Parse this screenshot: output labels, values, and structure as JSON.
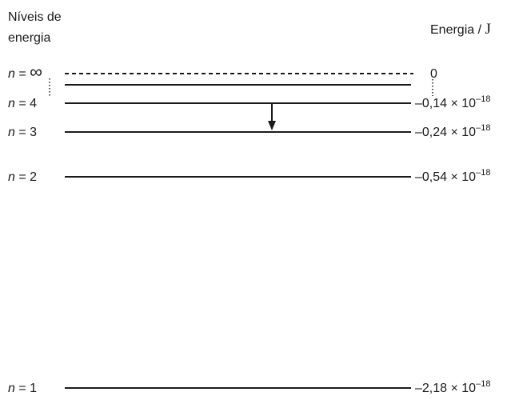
{
  "headers": {
    "levels_line1": "Níveis de",
    "levels_line2": "energia",
    "energy_label": "Energia / ",
    "energy_unit": "J"
  },
  "levels": [
    {
      "n_symbol": "n",
      "eq": " = ",
      "n_value": "∞",
      "energy": "0",
      "energy_coef": "",
      "energy_times": "",
      "energy_exp": ""
    },
    {
      "n_symbol": "n",
      "eq": " = ",
      "n_value": "4",
      "energy": "",
      "energy_coef": "–0,14",
      "energy_times": " × 10",
      "energy_exp": "–18"
    },
    {
      "n_symbol": "n",
      "eq": " = ",
      "n_value": "3",
      "energy": "",
      "energy_coef": "–0,24",
      "energy_times": " × 10",
      "energy_exp": "–18"
    },
    {
      "n_symbol": "n",
      "eq": " = ",
      "n_value": "2",
      "energy": "",
      "energy_coef": "–0,54",
      "energy_times": " × 10",
      "energy_exp": "–18"
    },
    {
      "n_symbol": "n",
      "eq": " = ",
      "n_value": "1",
      "energy": "",
      "energy_coef": "–2,18",
      "energy_times": " × 10",
      "energy_exp": "–18"
    }
  ],
  "transition": {
    "from_level": 4,
    "to_level": 3
  }
}
